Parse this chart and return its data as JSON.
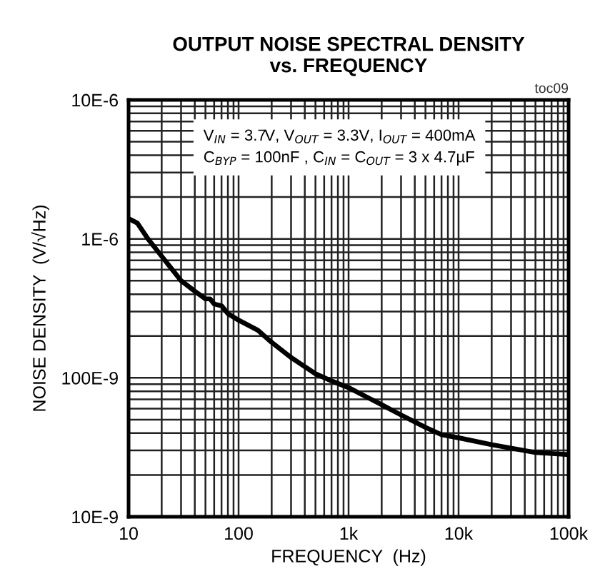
{
  "chart_data": {
    "type": "line",
    "title": "OUTPUT NOISE SPECTRAL DENSITY\nvs. FREQUENCY",
    "xlabel": "FREQUENCY  (Hz)",
    "ylabel": "NOISE DENSITY  (V/√Hz)",
    "annotations": [
      "toc09",
      "V$_{IN}$ = 3.7V, V$_{OUT}$ = 3.3V, I$_{OUT}$ = 400mA\nC$_{BYP}$ = 100nF , C$_{IN}$ = C$_{OUT}$ = 3 x 4.7µF"
    ],
    "x": [
      10,
      12,
      15,
      20,
      25,
      30,
      40,
      50,
      55,
      60,
      70,
      80,
      100,
      150,
      200,
      300,
      500,
      700,
      1000,
      1500,
      2000,
      3000,
      5000,
      7000,
      10000,
      20000,
      50000,
      100000
    ],
    "series": [
      {
        "color": "#000000",
        "values": [
          1.4e-06,
          1.3e-06,
          1e-06,
          7.5e-07,
          6e-07,
          5e-07,
          4.2e-07,
          3.7e-07,
          3.7e-07,
          3.4e-07,
          3.3e-07,
          2.9e-07,
          2.6e-07,
          2.2e-07,
          1.8e-07,
          1.4e-07,
          1.07e-07,
          9.5e-08,
          8.5e-08,
          7.2e-08,
          6.4e-08,
          5.4e-08,
          4.4e-08,
          3.9e-08,
          3.7e-08,
          3.3e-08,
          2.9e-08,
          2.8e-08
        ]
      }
    ],
    "log": "xy",
    "xlim": [
      10,
      100000
    ],
    "ylim": [
      1e-08,
      1e-05
    ],
    "xticks": [
      10,
      100,
      {
        "value": 1000,
        "label": "1k"
      },
      {
        "value": 10000,
        "label": "10k"
      },
      {
        "value": 100000,
        "label": "100k"
      }
    ],
    "yticks": [
      {
        "value": 1e-08,
        "label": "10E-9"
      },
      {
        "value": 1e-07,
        "label": "100E-9"
      },
      {
        "value": 1e-06,
        "label": "1E-6"
      },
      {
        "value": 1e-05,
        "label": "10E-6"
      }
    ],
    "grid": true,
    "line_style": "solid",
    "marker": "none"
  }
}
